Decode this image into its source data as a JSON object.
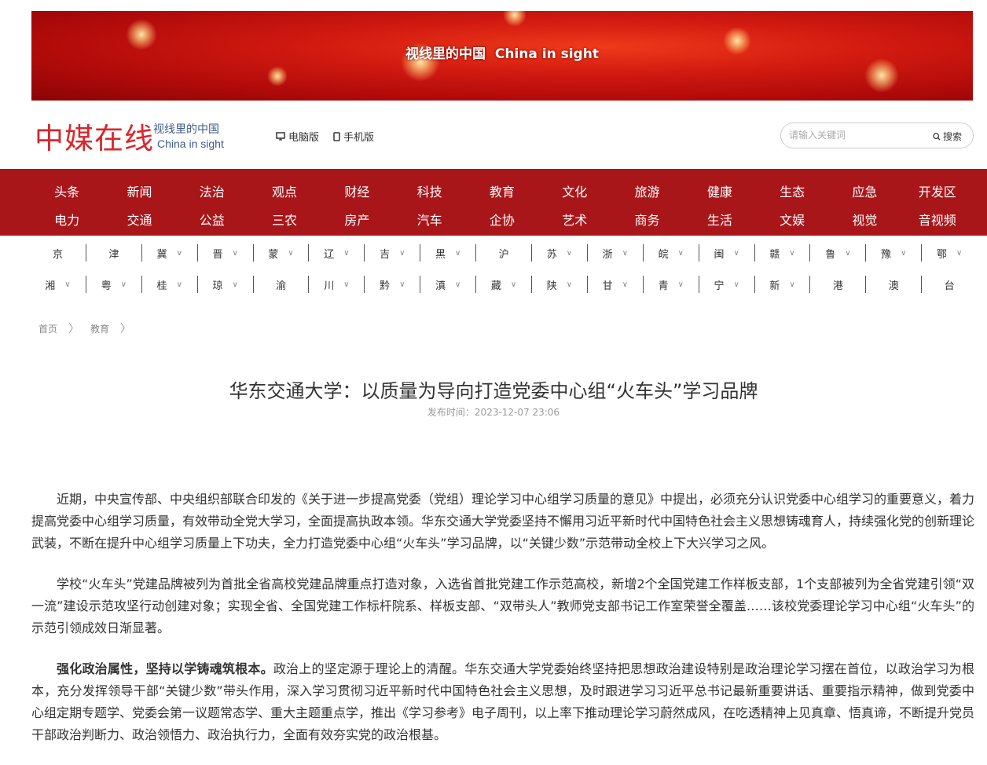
{
  "banner": {
    "title": "视线里的中国  China in sight"
  },
  "header": {
    "logo": "中媒在线",
    "slogan_cn": "视线里的中国",
    "slogan_en": "China in sight",
    "pc_version": "电脑版",
    "mobile_version": "手机版",
    "search_placeholder": "请输入关键词",
    "search_button": "搜索"
  },
  "nav": {
    "row1": [
      "头条",
      "新闻",
      "法治",
      "观点",
      "财经",
      "科技",
      "教育",
      "文化",
      "旅游",
      "健康",
      "生态",
      "应急",
      "开发区"
    ],
    "row2": [
      "电力",
      "交通",
      "公益",
      "三农",
      "房产",
      "汽车",
      "企协",
      "艺术",
      "商务",
      "生活",
      "文娱",
      "视觉",
      "音视频"
    ]
  },
  "provinces": {
    "row1": [
      {
        "name": "京",
        "dropdown": false
      },
      {
        "name": "津",
        "dropdown": false
      },
      {
        "name": "冀",
        "dropdown": true
      },
      {
        "name": "晋",
        "dropdown": true
      },
      {
        "name": "蒙",
        "dropdown": true
      },
      {
        "name": "辽",
        "dropdown": true
      },
      {
        "name": "吉",
        "dropdown": true
      },
      {
        "name": "黑",
        "dropdown": true
      },
      {
        "name": "沪",
        "dropdown": false
      },
      {
        "name": "苏",
        "dropdown": true
      },
      {
        "name": "浙",
        "dropdown": true
      },
      {
        "name": "皖",
        "dropdown": true
      },
      {
        "name": "闽",
        "dropdown": true
      },
      {
        "name": "赣",
        "dropdown": true
      },
      {
        "name": "鲁",
        "dropdown": true
      },
      {
        "name": "豫",
        "dropdown": true
      },
      {
        "name": "鄂",
        "dropdown": true
      }
    ],
    "row2": [
      {
        "name": "湘",
        "dropdown": true
      },
      {
        "name": "粤",
        "dropdown": true
      },
      {
        "name": "桂",
        "dropdown": true
      },
      {
        "name": "琼",
        "dropdown": true
      },
      {
        "name": "渝",
        "dropdown": false
      },
      {
        "name": "川",
        "dropdown": true
      },
      {
        "name": "黔",
        "dropdown": true
      },
      {
        "name": "滇",
        "dropdown": true
      },
      {
        "name": "藏",
        "dropdown": true
      },
      {
        "name": "陕",
        "dropdown": true
      },
      {
        "name": "甘",
        "dropdown": true
      },
      {
        "name": "青",
        "dropdown": true
      },
      {
        "name": "宁",
        "dropdown": true
      },
      {
        "name": "新",
        "dropdown": true
      },
      {
        "name": "港",
        "dropdown": false
      },
      {
        "name": "澳",
        "dropdown": false
      },
      {
        "name": "台",
        "dropdown": false
      }
    ]
  },
  "breadcrumb": [
    "首页",
    "教育"
  ],
  "article": {
    "title": "华东交通大学：以质量为导向打造党委中心组“火车头”学习品牌",
    "date": "发布时间：2023-12-07 23:06",
    "paragraphs": [
      {
        "bold": "",
        "text": "近期，中央宣传部、中央组织部联合印发的《关于进一步提高党委（党组）理论学习中心组学习质量的意见》中提出，必须充分认识党委中心组学习的重要意义，着力提高党委中心组学习质量，有效带动全党大学习，全面提高执政本领。华东交通大学党委坚持不懈用习近平新时代中国特色社会主义思想铸魂育人，持续强化党的创新理论武装，不断在提升中心组学习质量上下功夫，全力打造党委中心组“火车头”学习品牌，以“关键少数”示范带动全校上下大兴学习之风。"
      },
      {
        "bold": "",
        "text": "学校“火车头”党建品牌被列为首批全省高校党建品牌重点打造对象，入选省首批党建工作示范高校，新增2个全国党建工作样板支部，1个支部被列为全省党建引领“双一流”建设示范攻坚行动创建对象；实现全省、全国党建工作标杆院系、样板支部、“双带头人”教师党支部书记工作室荣誉全覆盖……该校党委理论学习中心组“火车头”的示范引领成效日渐显著。"
      },
      {
        "bold": "强化政治属性，坚持以学铸魂筑根本。",
        "text": "政治上的坚定源于理论上的清醒。华东交通大学党委始终坚持把思想政治建设特别是政治理论学习摆在首位，以政治学习为根本，充分发挥领导干部“关键少数”带头作用，深入学习贯彻习近平新时代中国特色社会主义思想，及时跟进学习习近平总书记最新重要讲话、重要指示精神，做到党委中心组定期专题学、党委会第一议题常态学、重大主题重点学，推出《学习参考》电子周刊，以上率下推动理论学习蔚然成风，在吃透精神上见真章、悟真谛，不断提升党员干部政治判断力、政治领悟力、政治执行力，全面有效夯实党的政治根基。"
      }
    ]
  },
  "colors": {
    "brand_red": "#a8161a",
    "logo_red": "#d9262b",
    "slogan_blue": "#3f5a8a"
  }
}
